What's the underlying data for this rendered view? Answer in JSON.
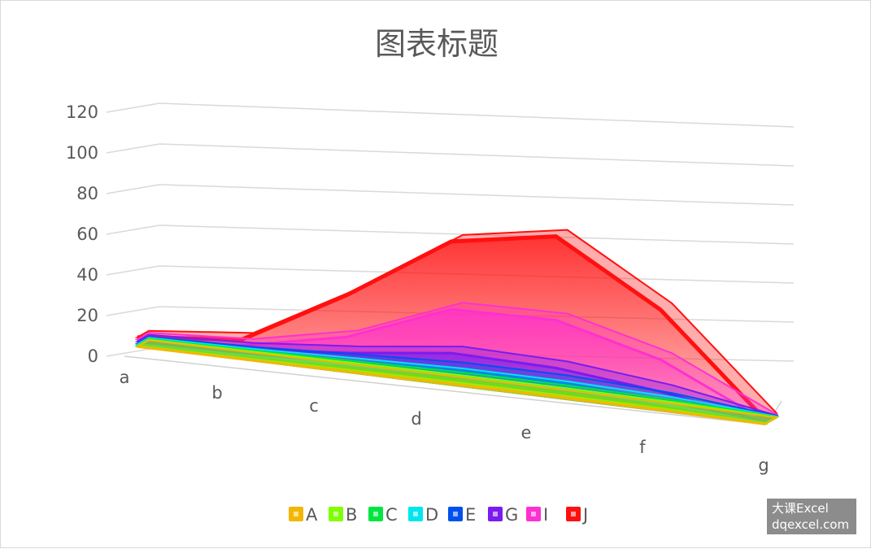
{
  "chart_data": {
    "type": "area",
    "subtype": "3d-stacked-area",
    "title": "图表标题",
    "categories": [
      "a",
      "b",
      "c",
      "d",
      "e",
      "f",
      "g"
    ],
    "y_ticks": [
      "0",
      "20",
      "40",
      "60",
      "80",
      "100",
      "120"
    ],
    "ylim": [
      0,
      120
    ],
    "grid": true,
    "legend_position": "bottom",
    "series": [
      {
        "name": "A",
        "color": "#f2b705",
        "values": [
          0.3,
          0.5,
          0.8,
          1,
          1,
          0.8,
          0.2
        ]
      },
      {
        "name": "B",
        "color": "#7fff00",
        "values": [
          0.3,
          0.5,
          0.8,
          1,
          1,
          0.8,
          0.2
        ]
      },
      {
        "name": "C",
        "color": "#00e640",
        "values": [
          0.4,
          0.6,
          1,
          1.5,
          1.5,
          1,
          0.2
        ]
      },
      {
        "name": "D",
        "color": "#00e5ee",
        "values": [
          0.5,
          0.8,
          1.5,
          2,
          2,
          1.5,
          0.2
        ]
      },
      {
        "name": "E",
        "color": "#0050f0",
        "values": [
          0.5,
          1,
          2,
          3,
          3,
          2,
          0.2
        ]
      },
      {
        "name": "G",
        "color": "#7a1cf0",
        "values": [
          1,
          2,
          4,
          8,
          7,
          4,
          0.3
        ]
      },
      {
        "name": "I",
        "color": "#ff30d0",
        "values": [
          1,
          2,
          8,
          22,
          24,
          16,
          0.5
        ]
      },
      {
        "name": "J",
        "color": "#ff1010",
        "values": [
          1,
          3,
          21,
          34,
          42,
          25,
          0.6
        ]
      }
    ]
  },
  "watermark": {
    "line1": "大课Excel",
    "line2": "dqexcel.com"
  }
}
